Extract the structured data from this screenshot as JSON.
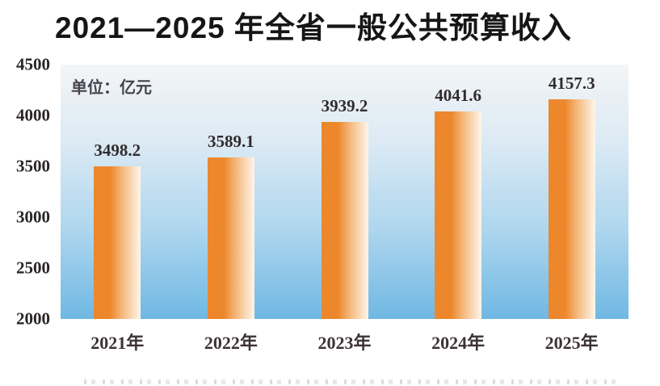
{
  "chart_data": {
    "type": "bar",
    "title": "2021—2025 年全省一般公共预算收入",
    "unit_label": "单位：亿元",
    "categories": [
      "2021年",
      "2022年",
      "2023年",
      "2024年",
      "2025年"
    ],
    "values": [
      3498.2,
      3589.1,
      3939.2,
      4041.6,
      4157.3
    ],
    "value_labels": [
      "3498.2",
      "3589.1",
      "3939.2",
      "4041.6",
      "4157.3"
    ],
    "ylim": [
      2000,
      4500
    ],
    "yticks": [
      "4500",
      "4000",
      "3500",
      "3000",
      "2500",
      "2000"
    ],
    "ytick_values": [
      4500,
      4000,
      3500,
      3000,
      2500,
      2000
    ],
    "grid": false,
    "legend": false,
    "xlabel": "",
    "ylabel": ""
  },
  "colors": {
    "title_text": "#161616",
    "axis_tick_text": "#2A2526",
    "value_label_text": "#322C2E",
    "x_label_text": "#3B3335",
    "unit_label_text": "#474350",
    "bar_gradient_left": "#EC872C",
    "bar_gradient_mid": "#F5BA80",
    "bar_gradient_right": "#FEF5E9",
    "plot_bg_top": "#F3F5F6",
    "plot_bg_upper_mid": "#DCEAF4",
    "plot_bg_lower_mid": "#AED6EE",
    "plot_bg_bottom": "#6FB8E3",
    "page_background": "#FFFFFF"
  }
}
